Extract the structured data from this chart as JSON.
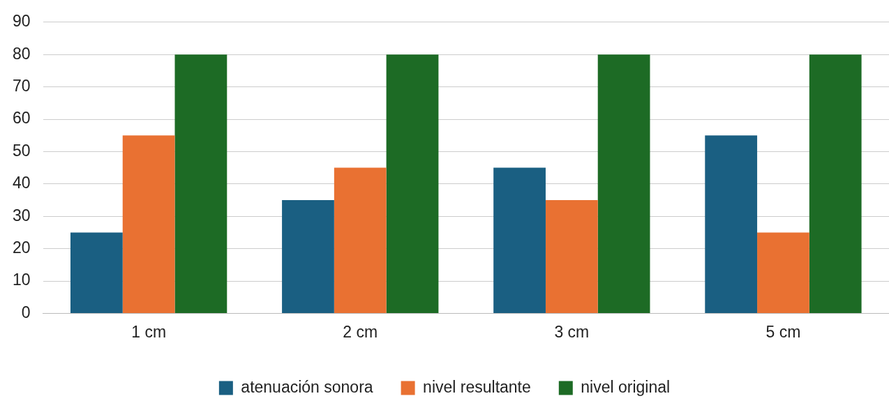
{
  "chart_data": {
    "type": "bar",
    "categories": [
      "1 cm",
      "2 cm",
      "3 cm",
      "5 cm"
    ],
    "series": [
      {
        "name": "atenuación sonora",
        "color": "#1a5f82",
        "values": [
          25,
          35,
          45,
          55
        ]
      },
      {
        "name": "nivel resultante",
        "color": "#e97132",
        "values": [
          55,
          45,
          35,
          25
        ]
      },
      {
        "name": "nivel original",
        "color": "#1d6b25",
        "values": [
          80,
          80,
          80,
          80
        ]
      }
    ],
    "ylim": [
      0,
      90
    ],
    "yticks": [
      0,
      10,
      20,
      30,
      40,
      50,
      60,
      70,
      80,
      90
    ],
    "grid": "y",
    "legend": "bottom"
  }
}
